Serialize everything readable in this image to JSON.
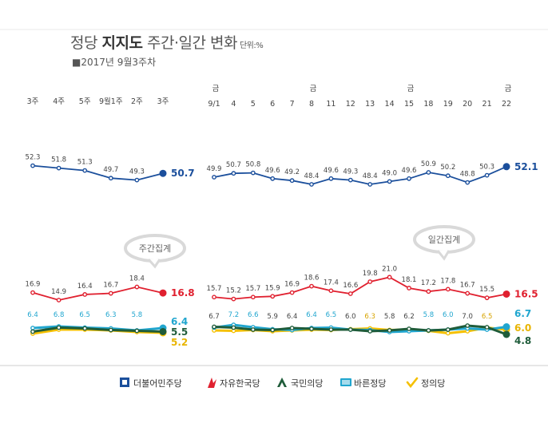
{
  "header": {
    "title_prefix": "정당 ",
    "title_bold": "지지도",
    "title_suffix": " 주간·일간 변화",
    "unit": "단위:%",
    "subtitle": "■2017년 9월3주차"
  },
  "bubbles": {
    "weekly": "주간집계",
    "daily": "일간집계"
  },
  "chart_data": {
    "type": "line",
    "colors": {
      "더불어민주당": "#1b4f9c",
      "자유한국당": "#e0202f",
      "국민의당": "#1f5c3a",
      "바른정당": "#21a6cf",
      "정의당": "#f5c000"
    },
    "weekly": {
      "categories": [
        "3주",
        "4주",
        "5주",
        "9월1주",
        "2주",
        "3주"
      ],
      "series": [
        {
          "name": "더불어민주당",
          "values": [
            52.3,
            51.8,
            51.3,
            49.7,
            49.3,
            50.7
          ],
          "labels": [
            "52.3",
            "51.8",
            "51.3",
            "49.7",
            "49.3",
            "50.7"
          ]
        },
        {
          "name": "자유한국당",
          "values": [
            16.9,
            14.9,
            16.4,
            16.7,
            18.4,
            16.8
          ],
          "labels": [
            "16.9",
            "14.9",
            "16.4",
            "16.7",
            "18.4",
            "16.8"
          ]
        },
        {
          "name": "바른정당",
          "values": [
            6.4,
            6.8,
            6.5,
            6.3,
            5.8,
            6.4
          ],
          "labels": [
            "6.4",
            "6.8",
            "6.5",
            "6.3",
            "5.8",
            "6.4"
          ]
        },
        {
          "name": "국민의당",
          "values": [
            5.5,
            6.5,
            6.3,
            5.9,
            5.7,
            5.5
          ],
          "labels": [
            "",
            "",
            "",
            "",
            "",
            "5.5"
          ]
        },
        {
          "name": "정의당",
          "values": [
            5.0,
            6.0,
            6.0,
            5.8,
            5.4,
            5.2
          ],
          "labels": [
            "",
            "",
            "",
            "",
            "",
            "5.2"
          ]
        }
      ]
    },
    "daily": {
      "categories": [
        "9/1",
        "4",
        "5",
        "6",
        "7",
        "8",
        "11",
        "12",
        "13",
        "14",
        "15",
        "18",
        "19",
        "20",
        "21",
        "22"
      ],
      "weekday_markers": [
        "금",
        "",
        "",
        "",
        "",
        "금",
        "",
        "",
        "",
        "",
        "금",
        "",
        "",
        "",
        "",
        "금"
      ],
      "series": [
        {
          "name": "더불어민주당",
          "values": [
            49.9,
            50.7,
            50.8,
            49.6,
            49.2,
            48.4,
            49.6,
            49.3,
            48.4,
            49.0,
            49.6,
            50.9,
            50.2,
            48.8,
            50.3,
            52.1
          ],
          "labels": [
            "49.9",
            "50.7",
            "50.8",
            "49.6",
            "49.2",
            "48.4",
            "49.6",
            "49.3",
            "48.4",
            "49.0",
            "49.6",
            "50.9",
            "50.2",
            "48.8",
            "50.3",
            "52.1"
          ]
        },
        {
          "name": "자유한국당",
          "values": [
            15.7,
            15.2,
            15.7,
            15.9,
            16.9,
            18.6,
            17.4,
            16.6,
            19.8,
            21.0,
            18.1,
            17.2,
            17.8,
            16.7,
            15.5,
            16.5
          ],
          "labels": [
            "15.7",
            "15.2",
            "15.7",
            "15.9",
            "16.9",
            "18.6",
            "17.4",
            "16.6",
            "19.8",
            "21.0",
            "18.1",
            "17.2",
            "17.8",
            "16.7",
            "15.5",
            "16.5"
          ]
        },
        {
          "name": "국민의당",
          "values": [
            6.7,
            6.5,
            6.0,
            5.9,
            6.4,
            6.2,
            6.0,
            6.0,
            5.6,
            5.8,
            6.2,
            5.8,
            6.0,
            7.0,
            6.6,
            4.8
          ],
          "labels": [
            "6.7",
            "",
            "",
            "5.9",
            "6.4",
            "",
            "",
            "6.0",
            "",
            "5.8",
            "6.2",
            "",
            "",
            "7.0",
            "",
            "4.8"
          ]
        },
        {
          "name": "바른정당",
          "values": [
            6.5,
            7.2,
            6.6,
            6.1,
            5.9,
            6.4,
            6.5,
            6.0,
            5.9,
            5.4,
            5.6,
            5.8,
            6.0,
            6.3,
            6.0,
            6.7
          ],
          "labels": [
            "",
            "7.2",
            "6.6",
            "",
            "",
            "6.4",
            "6.5",
            "",
            "",
            "",
            "",
            "5.8",
            "6.0",
            "",
            "",
            "6.7"
          ]
        },
        {
          "name": "정의당",
          "values": [
            5.8,
            5.7,
            5.9,
            5.6,
            5.8,
            6.0,
            5.9,
            6.1,
            6.3,
            5.9,
            6.0,
            5.7,
            5.1,
            5.6,
            6.5,
            6.0
          ],
          "labels": [
            "",
            "",
            "",
            "",
            "",
            "",
            "",
            "",
            "6.3",
            "",
            "",
            "",
            "",
            "",
            "6.5",
            "6.0"
          ]
        }
      ]
    }
  },
  "legend": [
    {
      "name": "더불어민주당",
      "icon": "minjoo-logo-icon"
    },
    {
      "name": "자유한국당",
      "icon": "torch-logo-icon"
    },
    {
      "name": "국민의당",
      "icon": "people-logo-icon"
    },
    {
      "name": "바른정당",
      "icon": "bareun-logo-icon"
    },
    {
      "name": "정의당",
      "icon": "check-logo-icon"
    }
  ]
}
